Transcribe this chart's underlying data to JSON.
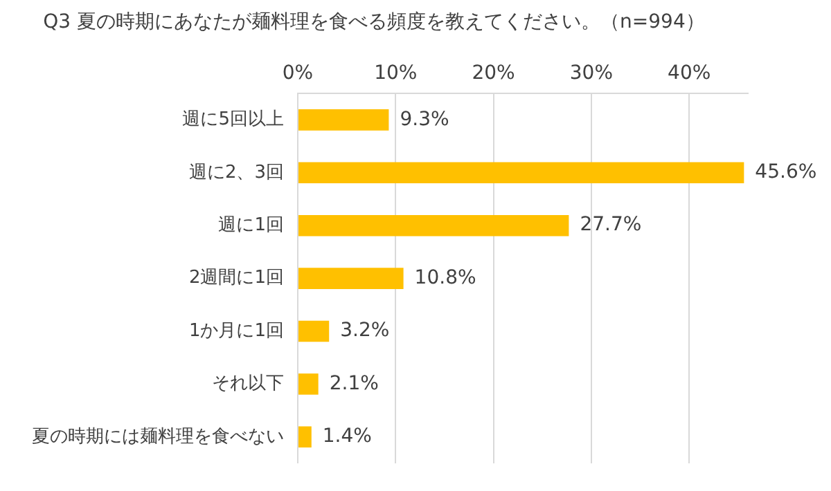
{
  "chart_data": {
    "type": "bar",
    "orientation": "horizontal",
    "title": "Q3 夏の時期にあなたが麺料理を食べる頻度を教えてください。（n=994）",
    "categories": [
      "週に5回以上",
      "週に2、3回",
      "週に1回",
      "2週間に1回",
      "1か月に1回",
      "それ以下",
      "夏の時期には麺料理を食べない"
    ],
    "values": [
      9.3,
      45.6,
      27.7,
      10.8,
      3.2,
      2.1,
      1.4
    ],
    "value_labels": [
      "9.3%",
      "45.6%",
      "27.7%",
      "10.8%",
      "3.2%",
      "2.1%",
      "1.4%"
    ],
    "color": "#ffc000",
    "xlim": [
      0,
      46
    ],
    "xticks": [
      {
        "value": 0,
        "label": "0%"
      },
      {
        "value": 10,
        "label": "10%"
      },
      {
        "value": 20,
        "label": "20%"
      },
      {
        "value": 30,
        "label": "30%"
      },
      {
        "value": 40,
        "label": "40%"
      }
    ],
    "grid": "x",
    "legend": false
  }
}
